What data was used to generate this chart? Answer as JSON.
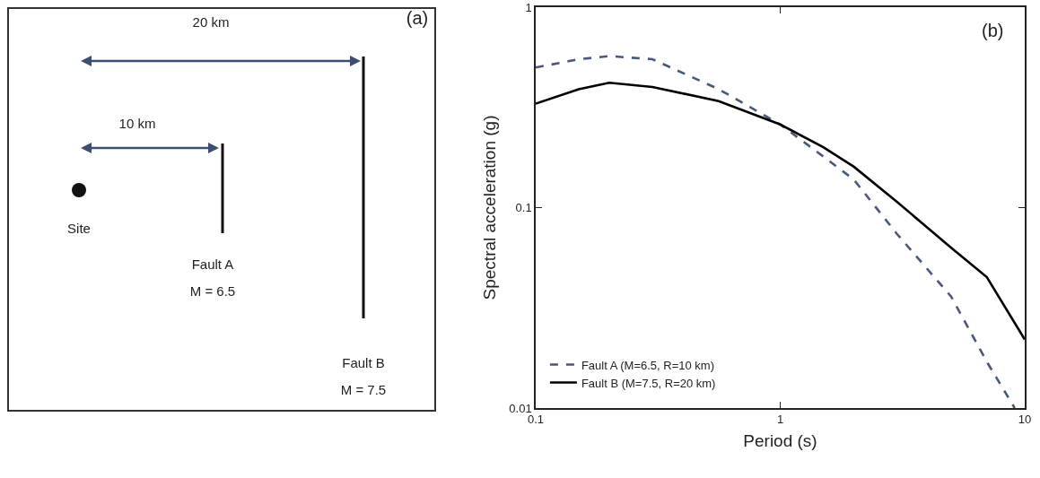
{
  "chart_data": [
    {
      "type": "other",
      "annotations": [
        "(a)",
        "20 km",
        "10 km",
        "Site",
        "Fault A",
        "M = 6.5",
        "Fault B",
        "M = 7.5"
      ]
    },
    {
      "type": "line",
      "xlabel": "Period (s)",
      "ylabel": "Spectral acceleration (g)",
      "annotations": [
        "(b)"
      ],
      "log": "xy",
      "grid": false,
      "legend": "bottom left",
      "marker": "none",
      "xlim": [
        0.1,
        10
      ],
      "xticks": [
        0.1,
        1,
        10
      ],
      "ylim": [
        0.01,
        1
      ],
      "yticks": [
        0.01,
        0.1,
        1
      ],
      "series": [
        {
          "name": "Fault A (M=6.5, R=10 km)",
          "color": "#4a5878",
          "line_style": "dashed",
          "x": [
            0.1,
            0.15,
            0.2,
            0.3,
            0.56,
            1,
            1.5,
            2,
            3,
            5,
            7,
            9.1
          ],
          "values": [
            0.5,
            0.55,
            0.57,
            0.55,
            0.39,
            0.26,
            0.18,
            0.138,
            0.074,
            0.036,
            0.017,
            0.01
          ]
        },
        {
          "name": "Fault B (M=7.5, R=20 km)",
          "color": "#000000",
          "line_style": "solid",
          "x": [
            0.1,
            0.15,
            0.2,
            0.3,
            0.56,
            1,
            1.5,
            2,
            3,
            5,
            7,
            10
          ],
          "values": [
            0.33,
            0.39,
            0.42,
            0.4,
            0.34,
            0.26,
            0.2,
            0.16,
            0.107,
            0.063,
            0.045,
            0.022
          ]
        }
      ]
    }
  ]
}
